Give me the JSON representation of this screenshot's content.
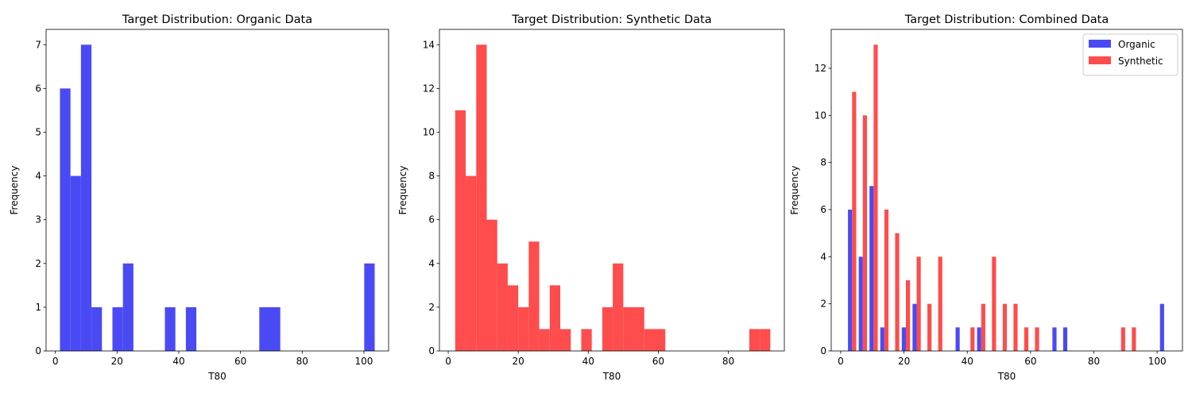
{
  "chart_data": [
    {
      "type": "bar",
      "title": "Target Distribution: Organic Data",
      "xlabel": "T80",
      "ylabel": "Frequency",
      "xlim": [
        -3,
        108
      ],
      "ylim": [
        0,
        7.35
      ],
      "xticks": [
        0,
        20,
        40,
        60,
        80,
        100
      ],
      "yticks": [
        0,
        1,
        2,
        3,
        4,
        5,
        6,
        7
      ],
      "bin_width": 3.4,
      "series": [
        {
          "color": "#4a4af5",
          "bins": [
            {
              "x": 1.5,
              "y": 6
            },
            {
              "x": 4.9,
              "y": 4
            },
            {
              "x": 8.3,
              "y": 7
            },
            {
              "x": 11.7,
              "y": 1
            },
            {
              "x": 18.5,
              "y": 1
            },
            {
              "x": 21.9,
              "y": 2
            },
            {
              "x": 35.5,
              "y": 1
            },
            {
              "x": 42.3,
              "y": 1
            },
            {
              "x": 66.1,
              "y": 1
            },
            {
              "x": 69.5,
              "y": 1
            },
            {
              "x": 100.1,
              "y": 2
            }
          ]
        }
      ]
    },
    {
      "type": "bar",
      "title": "Target Distribution: Synthetic Data",
      "xlabel": "T80",
      "ylabel": "Frequency",
      "xlim": [
        -2.5,
        96
      ],
      "ylim": [
        0,
        14.7
      ],
      "xticks": [
        0,
        20,
        40,
        60,
        80
      ],
      "yticks": [
        0,
        2,
        4,
        6,
        8,
        10,
        12,
        14
      ],
      "bin_width": 3.0,
      "series": [
        {
          "color": "#ff4c4c",
          "bins": [
            {
              "x": 2.0,
              "y": 11
            },
            {
              "x": 5.0,
              "y": 8
            },
            {
              "x": 8.0,
              "y": 14
            },
            {
              "x": 11.0,
              "y": 6
            },
            {
              "x": 14.0,
              "y": 4
            },
            {
              "x": 17.0,
              "y": 3
            },
            {
              "x": 20.0,
              "y": 2
            },
            {
              "x": 23.0,
              "y": 5
            },
            {
              "x": 26.0,
              "y": 1
            },
            {
              "x": 29.0,
              "y": 3
            },
            {
              "x": 32.0,
              "y": 1
            },
            {
              "x": 38.0,
              "y": 1
            },
            {
              "x": 44.0,
              "y": 2
            },
            {
              "x": 47.0,
              "y": 4
            },
            {
              "x": 50.0,
              "y": 2
            },
            {
              "x": 53.0,
              "y": 2
            },
            {
              "x": 56.0,
              "y": 1
            },
            {
              "x": 59.0,
              "y": 1
            },
            {
              "x": 86.0,
              "y": 1
            },
            {
              "x": 89.0,
              "y": 1
            }
          ]
        }
      ]
    },
    {
      "type": "bar",
      "title": "Target Distribution: Combined Data",
      "xlabel": "T80",
      "ylabel": "Frequency",
      "xlim": [
        -3,
        108
      ],
      "ylim": [
        0,
        13.65
      ],
      "xticks": [
        0,
        20,
        40,
        60,
        80,
        100
      ],
      "yticks": [
        0,
        2,
        4,
        6,
        8,
        10,
        12
      ],
      "bar_width": 1.3,
      "legend": {
        "position": "top-right"
      },
      "series": [
        {
          "name": "Organic",
          "color": "#4a4af5",
          "bins": [
            {
              "x": 2.3,
              "y": 6
            },
            {
              "x": 5.7,
              "y": 4
            },
            {
              "x": 9.1,
              "y": 7
            },
            {
              "x": 12.5,
              "y": 1
            },
            {
              "x": 19.3,
              "y": 1
            },
            {
              "x": 22.7,
              "y": 2
            },
            {
              "x": 36.3,
              "y": 1
            },
            {
              "x": 43.1,
              "y": 1
            },
            {
              "x": 66.9,
              "y": 1
            },
            {
              "x": 70.3,
              "y": 1
            },
            {
              "x": 100.9,
              "y": 2
            }
          ]
        },
        {
          "name": "Synthetic",
          "color": "#ff4c4c",
          "bins": [
            {
              "x": 3.6,
              "y": 11
            },
            {
              "x": 7.0,
              "y": 10
            },
            {
              "x": 10.4,
              "y": 13
            },
            {
              "x": 13.8,
              "y": 6
            },
            {
              "x": 17.2,
              "y": 5
            },
            {
              "x": 20.6,
              "y": 3
            },
            {
              "x": 24.0,
              "y": 4
            },
            {
              "x": 27.4,
              "y": 2
            },
            {
              "x": 30.8,
              "y": 4
            },
            {
              "x": 41.0,
              "y": 1
            },
            {
              "x": 44.4,
              "y": 2
            },
            {
              "x": 47.8,
              "y": 4
            },
            {
              "x": 51.2,
              "y": 2
            },
            {
              "x": 54.6,
              "y": 2
            },
            {
              "x": 58.0,
              "y": 1
            },
            {
              "x": 61.4,
              "y": 1
            },
            {
              "x": 88.6,
              "y": 1
            },
            {
              "x": 92.0,
              "y": 1
            }
          ]
        }
      ]
    }
  ]
}
